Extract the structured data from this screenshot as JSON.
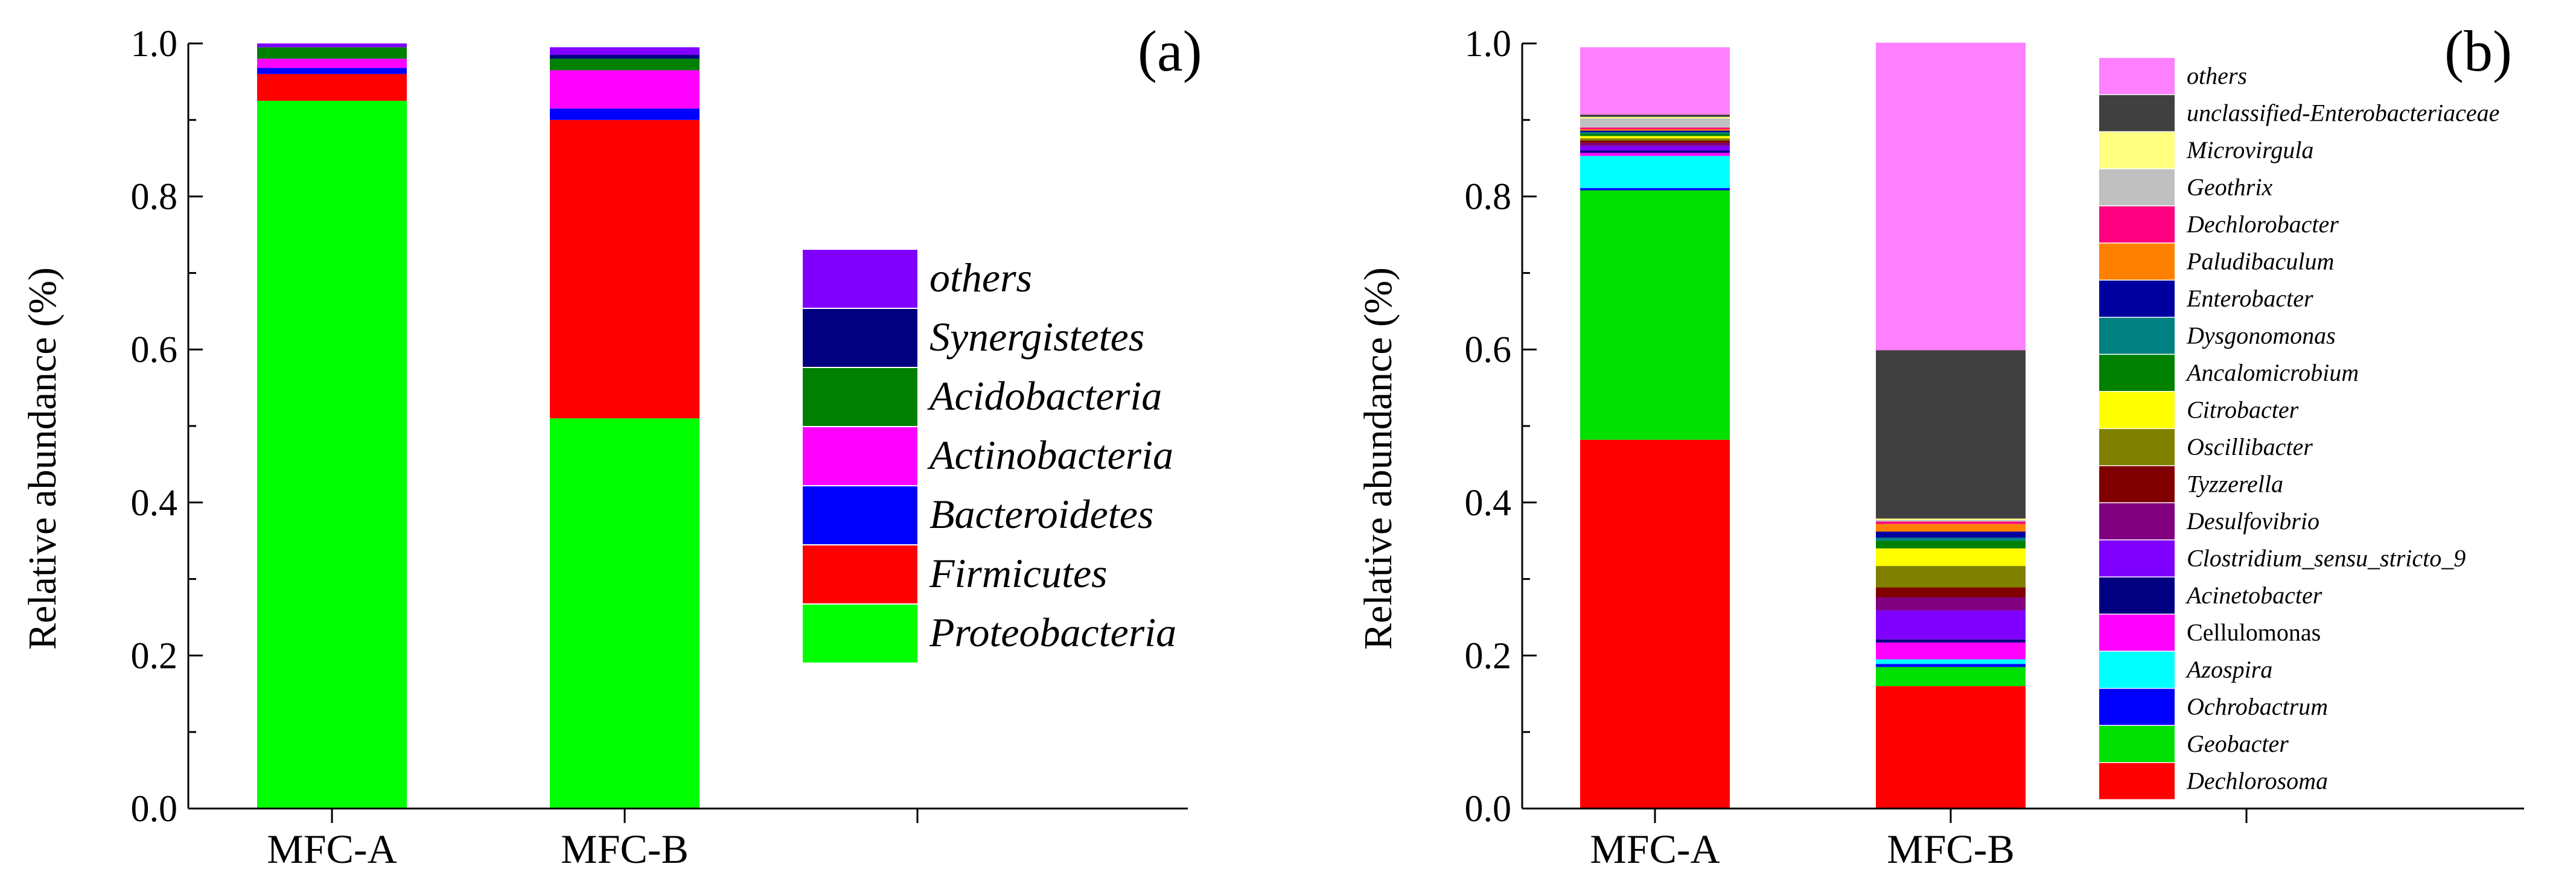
{
  "chart_data": [
    {
      "type": "bar",
      "stacked": true,
      "panel_label": "(a)",
      "title": "",
      "xlabel": "",
      "ylabel": "Relative abundance (%)",
      "ylim": [
        0,
        1.0
      ],
      "yticks": [
        "0.0",
        "0.2",
        "0.4",
        "0.6",
        "0.8",
        "1.0"
      ],
      "categories": [
        "MFC-A",
        "MFC-B"
      ],
      "legend_position": "right",
      "series": [
        {
          "name": "Proteobacteria",
          "color": "#00ff00",
          "values": [
            0.925,
            0.51
          ]
        },
        {
          "name": "Firmicutes",
          "color": "#ff0000",
          "values": [
            0.035,
            0.39
          ]
        },
        {
          "name": "Bacteroidetes",
          "color": "#0000ff",
          "values": [
            0.008,
            0.015
          ]
        },
        {
          "name": "Actinobacteria",
          "color": "#ff00ff",
          "values": [
            0.012,
            0.05
          ]
        },
        {
          "name": "Acidobacteria",
          "color": "#008000",
          "values": [
            0.015,
            0.015
          ]
        },
        {
          "name": "Synergistetes",
          "color": "#000080",
          "values": [
            0.0,
            0.005
          ]
        },
        {
          "name": "others",
          "color": "#8000ff",
          "values": [
            0.005,
            0.01
          ]
        }
      ]
    },
    {
      "type": "bar",
      "stacked": true,
      "panel_label": "(b)",
      "title": "",
      "xlabel": "",
      "ylabel": "Relative abundance (%)",
      "ylim": [
        0,
        1.0
      ],
      "yticks": [
        "0.0",
        "0.2",
        "0.4",
        "0.6",
        "0.8",
        "1.0"
      ],
      "categories": [
        "MFC-A",
        "MFC-B"
      ],
      "legend_position": "right",
      "series": [
        {
          "name": "Dechlorosoma",
          "color": "#ff0000",
          "italic": true,
          "values": [
            0.482,
            0.16
          ]
        },
        {
          "name": "Geobacter",
          "color": "#00e000",
          "italic": true,
          "values": [
            0.326,
            0.025
          ]
        },
        {
          "name": "Ochrobactrum",
          "color": "#0000ff",
          "italic": true,
          "values": [
            0.003,
            0.004
          ]
        },
        {
          "name": "Azospira",
          "color": "#00ffff",
          "italic": true,
          "values": [
            0.042,
            0.006
          ]
        },
        {
          "name": "Cellulomonas",
          "color": "#ff00ff",
          "italic": false,
          "values": [
            0.004,
            0.022
          ]
        },
        {
          "name": "Acinetobacter",
          "color": "#000080",
          "italic": true,
          "values": [
            0.003,
            0.004
          ]
        },
        {
          "name": "Clostridium_sensu_stricto_9",
          "color": "#8000ff",
          "italic": true,
          "values": [
            0.006,
            0.038
          ]
        },
        {
          "name": "Desulfovibrio",
          "color": "#800080",
          "italic": true,
          "values": [
            0.004,
            0.017
          ]
        },
        {
          "name": "Tyzzerella",
          "color": "#800000",
          "italic": true,
          "values": [
            0.003,
            0.013
          ]
        },
        {
          "name": "Oscillibacter",
          "color": "#808000",
          "italic": true,
          "values": [
            0.003,
            0.028
          ]
        },
        {
          "name": "Citrobacter",
          "color": "#ffff00",
          "italic": true,
          "values": [
            0.003,
            0.023
          ]
        },
        {
          "name": "Ancalomicrobium",
          "color": "#008000",
          "italic": true,
          "values": [
            0.003,
            0.01
          ]
        },
        {
          "name": "Dysgonomonas",
          "color": "#008080",
          "italic": true,
          "values": [
            0.002,
            0.004
          ]
        },
        {
          "name": "Enterobacter",
          "color": "#0000a0",
          "italic": true,
          "values": [
            0.002,
            0.008
          ]
        },
        {
          "name": "Paludibaculum",
          "color": "#ff8000",
          "italic": true,
          "values": [
            0.002,
            0.01
          ]
        },
        {
          "name": "Dechlorobacter",
          "color": "#ff0080",
          "italic": true,
          "values": [
            0.002,
            0.003
          ]
        },
        {
          "name": "Geothrix",
          "color": "#c0c0c0",
          "italic": true,
          "values": [
            0.012,
            0.002
          ]
        },
        {
          "name": "Microvirgula",
          "color": "#ffff80",
          "italic": true,
          "values": [
            0.002,
            0.002
          ]
        },
        {
          "name": "unclassified-Enterobacteriaceae",
          "color": "#404040",
          "italic": true,
          "values": [
            0.003,
            0.22
          ]
        },
        {
          "name": "others",
          "color": "#ff80ff",
          "italic": true,
          "values": [
            0.088,
            0.402
          ]
        }
      ]
    }
  ]
}
